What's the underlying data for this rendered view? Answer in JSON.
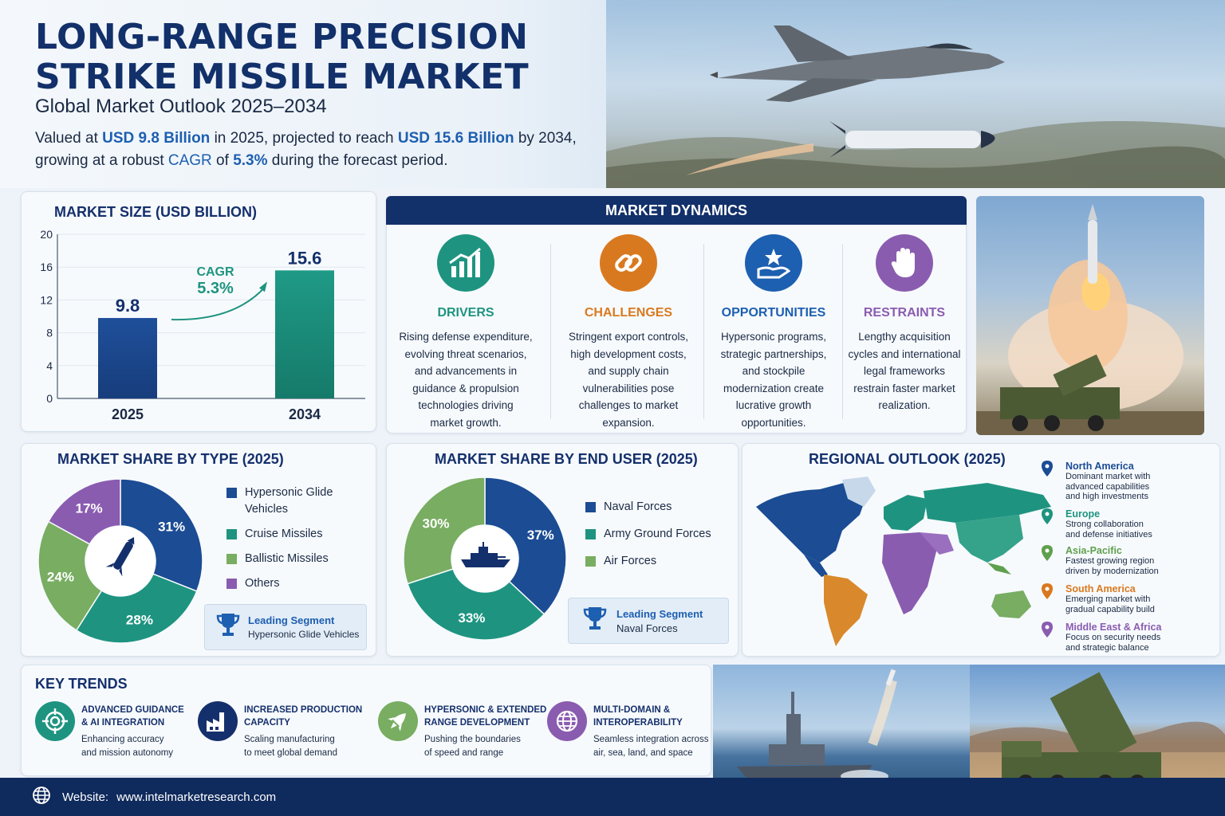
{
  "header": {
    "title_line1": "LONG-RANGE PRECISION",
    "title_line2": "STRIKE MISSILE MARKET",
    "subtitle": "Global Market Outlook 2025–2034",
    "summary": {
      "p1": "Valued at ",
      "v1": "USD 9.8 Billion",
      "p2": " in 2025, projected to reach ",
      "v2": "USD 15.6 Billion",
      "p3": " by 2034,",
      "p4": "growing at a robust ",
      "v3": "CAGR",
      "p5": " of ",
      "v4": "5.3%",
      "p6": " during the forecast period."
    }
  },
  "market_size": {
    "title": "MARKET SIZE (USD BILLION)",
    "cagr_label": "CAGR",
    "cagr_value": "5.3%"
  },
  "chart_data": [
    {
      "type": "bar",
      "title": "MARKET SIZE (USD BILLION)",
      "categories": [
        "2025",
        "2034"
      ],
      "values": [
        9.8,
        15.6
      ],
      "value_labels": [
        "9.8",
        "15.6"
      ],
      "ylim": [
        0,
        20
      ],
      "yticks": [
        "0",
        "4",
        "8",
        "12",
        "16",
        "20"
      ],
      "colors": [
        "#1f4f9a",
        "#1f9a86"
      ],
      "grid": true
    },
    {
      "type": "pie",
      "title": "MARKET SHARE BY TYPE (2025)",
      "labels": [
        "Hypersonic Glide Vehicles",
        "Cruise Missiles",
        "Ballistic Missiles",
        "Others"
      ],
      "values": [
        31,
        28,
        24,
        17
      ],
      "value_labels": [
        "31%",
        "28%",
        "24%",
        "17%"
      ],
      "colors": [
        "#1b4c94",
        "#1e9480",
        "#78ad62",
        "#8a5cb0"
      ]
    },
    {
      "type": "pie",
      "title": "MARKET SHARE BY END USER (2025)",
      "labels": [
        "Naval Forces",
        "Army Ground Forces",
        "Air Forces"
      ],
      "values": [
        37,
        33,
        30
      ],
      "value_labels": [
        "37%",
        "33%",
        "30%"
      ],
      "colors": [
        "#1b4c94",
        "#1e9480",
        "#78ad62"
      ]
    }
  ],
  "dynamics": {
    "title": "MARKET DYNAMICS",
    "items": [
      {
        "name": "DRIVERS",
        "color": "#1e9480",
        "icon": "growth-chart-icon",
        "text": [
          "Rising defense expenditure,",
          "evolving threat scenarios,",
          "and advancements in",
          "guidance & propulsion",
          "technologies driving",
          "market growth."
        ]
      },
      {
        "name": "CHALLENGES",
        "color": "#d9791f",
        "icon": "chain-link-icon",
        "text": [
          "Stringent export controls,",
          "high development costs,",
          "and supply chain",
          "vulnerabilities pose",
          "challenges to market",
          "expansion."
        ]
      },
      {
        "name": "OPPORTUNITIES",
        "color": "#1d5fb0",
        "icon": "hand-star-icon",
        "text": [
          "Hypersonic programs,",
          "strategic partnerships,",
          "and stockpile",
          "modernization create",
          "lucrative growth",
          "opportunities."
        ]
      },
      {
        "name": "RESTRAINTS",
        "color": "#8a5cb0",
        "icon": "stop-hand-icon",
        "text": [
          "Lengthy acquisition",
          "cycles and international",
          "legal frameworks",
          "restrain faster market",
          "realization."
        ]
      }
    ]
  },
  "type_share": {
    "title": "MARKET SHARE BY TYPE (2025)",
    "legend": [
      "Hypersonic Glide",
      "Vehicles",
      "Cruise Missiles",
      "Ballistic Missiles",
      "Others"
    ],
    "leading_label": "Leading Segment",
    "leading_value": "Hypersonic Glide Vehicles"
  },
  "end_user_share": {
    "title": "MARKET SHARE BY END USER (2025)",
    "legend": [
      "Naval Forces",
      "Army Ground Forces",
      "Air Forces"
    ],
    "leading_label": "Leading Segment",
    "leading_value": "Naval Forces"
  },
  "regional": {
    "title": "REGIONAL OUTLOOK (2025)",
    "items": [
      {
        "name": "North America",
        "color": "#1b4c94",
        "desc": [
          "Dominant market with",
          "advanced capabilities",
          "and high investments"
        ]
      },
      {
        "name": "Europe",
        "color": "#1e9480",
        "desc": [
          "Strong collaboration",
          "and defense initiatives"
        ]
      },
      {
        "name": "Asia-Pacific",
        "color": "#5fa04e",
        "desc": [
          "Fastest growing region",
          "driven by modernization"
        ]
      },
      {
        "name": "South America",
        "color": "#d9791f",
        "desc": [
          "Emerging market with",
          "gradual capability build"
        ]
      },
      {
        "name": "Middle East & Africa",
        "color": "#8a5cb0",
        "desc": [
          "Focus on security needs",
          "and strategic balance"
        ]
      }
    ]
  },
  "trends": {
    "title": "KEY TRENDS",
    "items": [
      {
        "title": [
          "ADVANCED GUIDANCE",
          "& AI INTEGRATION"
        ],
        "desc": [
          "Enhancing accuracy",
          "and mission autonomy"
        ],
        "color": "#1e9480",
        "icon": "target-icon"
      },
      {
        "title": [
          "INCREASED PRODUCTION",
          "CAPACITY"
        ],
        "desc": [
          "Scaling manufacturing",
          "to meet global demand"
        ],
        "color": "#14306c",
        "icon": "factory-icon"
      },
      {
        "title": [
          "HYPERSONIC & EXTENDED",
          "RANGE DEVELOPMENT"
        ],
        "desc": [
          "Pushing the boundaries",
          "of speed and range"
        ],
        "color": "#78ad62",
        "icon": "rocket-icon"
      },
      {
        "title": [
          "MULTI-DOMAIN &",
          "INTEROPERABILITY"
        ],
        "desc": [
          "Seamless integration across",
          "air, sea, land, and space"
        ],
        "color": "#8a5cb0",
        "icon": "globe-network-icon"
      }
    ]
  },
  "footer": {
    "label": "Website:",
    "url": "www.intelmarketresearch.com"
  }
}
